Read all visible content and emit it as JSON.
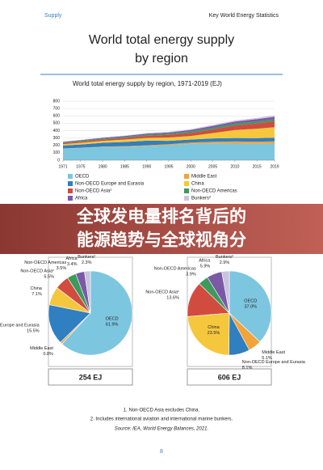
{
  "header": {
    "left": "Supply",
    "right": "Key World Energy Statistics"
  },
  "title": [
    "World total energy supply",
    "by region"
  ],
  "chart_data": [
    {
      "type": "area",
      "title": "World total energy supply by region, 1971-2019 (EJ)",
      "x": [
        1971,
        1975,
        1980,
        1985,
        1990,
        1995,
        2000,
        2005,
        2010,
        2015,
        2019
      ],
      "xlim": [
        1971,
        2019
      ],
      "xticks": [
        1971,
        1975,
        1980,
        1985,
        1990,
        1995,
        2000,
        2005,
        2010,
        2015,
        2019
      ],
      "ylim": [
        0,
        800
      ],
      "yticks": [
        0,
        100,
        200,
        300,
        400,
        500,
        600,
        700,
        800
      ],
      "grid": true,
      "series": [
        {
          "name": "OECD",
          "color": "#7cc6e0",
          "values": [
            157,
            164,
            178,
            180,
            190,
            203,
            221,
            228,
            225,
            220,
            224
          ]
        },
        {
          "name": "Middle East",
          "color": "#f2a33a",
          "values": [
            2,
            4,
            6,
            9,
            11,
            14,
            17,
            22,
            28,
            31,
            31
          ]
        },
        {
          "name": "Non-OECD Europe and Eurasia",
          "color": "#2f7fc1",
          "values": [
            39,
            45,
            52,
            58,
            64,
            44,
            41,
            45,
            47,
            48,
            49
          ]
        },
        {
          "name": "China",
          "color": "#f5c73d",
          "values": [
            18,
            22,
            25,
            32,
            37,
            46,
            48,
            72,
            108,
            127,
            142
          ]
        },
        {
          "name": "Non-OECD Asia¹",
          "color": "#d24b3f",
          "values": [
            14,
            16,
            19,
            22,
            28,
            35,
            42,
            50,
            62,
            73,
            82
          ]
        },
        {
          "name": "Non-OECD Americas",
          "color": "#3d9a5b",
          "values": [
            9,
            10,
            12,
            13,
            15,
            17,
            20,
            22,
            24,
            24,
            24
          ]
        },
        {
          "name": "Africa",
          "color": "#7a5aa6",
          "values": [
            9,
            10,
            11,
            13,
            15,
            17,
            21,
            25,
            29,
            33,
            36
          ]
        },
        {
          "name": "Bunkers²",
          "color": "#cac3dd",
          "values": [
            6,
            5,
            6,
            6,
            7,
            8,
            10,
            13,
            15,
            16,
            18
          ]
        }
      ]
    },
    {
      "type": "pie",
      "caption": "254 EJ",
      "categories": [
        "OECD",
        "Middle East",
        "Non-OECD Europe and Eurasia",
        "China",
        "Non-OECD Asia¹",
        "Non-OECD Americas",
        "Africa",
        "Bunkers²"
      ],
      "values": [
        61.9,
        0.8,
        15.5,
        7.1,
        5.5,
        3.5,
        3.4,
        2.3
      ],
      "value_labels": [
        "61.9%",
        "0.8%",
        "15.5%",
        "7.1%",
        "5.5%",
        "3.5%",
        "3.4%",
        "2.3%"
      ],
      "colors": [
        "#7cc6e0",
        "#f2a33a",
        "#2f7fc1",
        "#f5c73d",
        "#d24b3f",
        "#3d9a5b",
        "#7a5aa6",
        "#cac3dd"
      ]
    },
    {
      "type": "pie",
      "caption": "606 EJ",
      "categories": [
        "OECD",
        "Middle East",
        "Non-OECD Europe and Eurasia",
        "China",
        "Non-OECD Asia¹",
        "Non-OECD Americas",
        "Africa",
        "Bunkers²"
      ],
      "values": [
        37.0,
        5.1,
        8.1,
        23.5,
        13.6,
        3.9,
        5.9,
        2.9
      ],
      "value_labels": [
        "37.0%",
        "5.1%",
        "8.1%",
        "23.5%",
        "13.6%",
        "3.9%",
        "5.9%",
        "2.9%"
      ],
      "colors": [
        "#7cc6e0",
        "#f2a33a",
        "#2f7fc1",
        "#f5c73d",
        "#d24b3f",
        "#3d9a5b",
        "#7a5aa6",
        "#cac3dd"
      ]
    }
  ],
  "overlay": {
    "lines": [
      "全球发电量排名背后的",
      "能源趋势与全球视角分"
    ]
  },
  "footnotes": [
    "1. Non-OECD Asia excludes China.",
    "2. Includes international aviation and international marine bunkers.",
    "Source: IEA, World Energy Balances, 2021."
  ],
  "page_number": "8"
}
